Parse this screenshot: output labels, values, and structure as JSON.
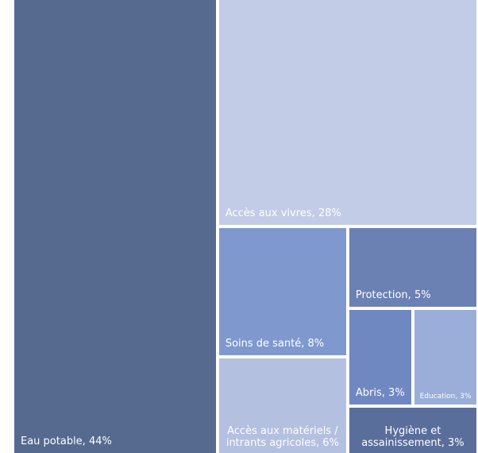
{
  "chart_data": {
    "type": "treemap",
    "labels": [
      "Eau potable, 44%",
      "Accès aux vivres, 28%",
      "Soins de santé, 8%",
      "Accès aux matériels / intrants agricoles, 6%",
      "Protection, 5%",
      "Abris, 3%",
      "Education, 3%",
      "Hygiène et assainissement, 3%"
    ],
    "values": [
      44,
      28,
      8,
      6,
      5,
      3,
      3,
      3
    ],
    "colors": [
      "#566a8f",
      "#c3cce6",
      "#7f99cf",
      "#b3c0e0",
      "#6b80b3",
      "#7088c2",
      "#9aaed9",
      "#5a6e9c"
    ]
  }
}
